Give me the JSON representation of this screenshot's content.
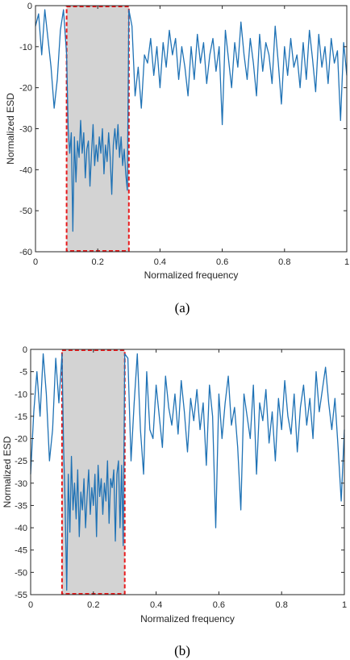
{
  "chart_data": [
    {
      "type": "line",
      "caption": "(a)",
      "xlabel": "Normalized frequency",
      "ylabel": "Normalized ESD",
      "xlim": [
        0,
        1
      ],
      "ylim": [
        -60,
        0
      ],
      "xticks": [
        0,
        0.2,
        0.4,
        0.6,
        0.8,
        1
      ],
      "xtick_labels": [
        "0",
        "0.2",
        "0.4",
        "0.6",
        "0.8",
        "1"
      ],
      "yticks": [
        0,
        -10,
        -20,
        -30,
        -40,
        -50,
        -60
      ],
      "ytick_labels": [
        "0",
        "-10",
        "-20",
        "-30",
        "-40",
        "-50",
        "-60"
      ],
      "grid": false,
      "band": {
        "x0": 0.1,
        "x1": 0.3,
        "fill": "#d3d3d3",
        "border": "#e8191b"
      },
      "line_color": "#1f72b5",
      "x": [
        0,
        0.01,
        0.02,
        0.03,
        0.04,
        0.05,
        0.06,
        0.07,
        0.08,
        0.09,
        0.1,
        0.105,
        0.11,
        0.115,
        0.12,
        0.125,
        0.13,
        0.135,
        0.14,
        0.145,
        0.15,
        0.155,
        0.16,
        0.165,
        0.17,
        0.175,
        0.18,
        0.185,
        0.19,
        0.195,
        0.2,
        0.205,
        0.21,
        0.215,
        0.22,
        0.225,
        0.23,
        0.235,
        0.24,
        0.245,
        0.25,
        0.255,
        0.26,
        0.265,
        0.27,
        0.275,
        0.28,
        0.285,
        0.29,
        0.295,
        0.3,
        0.31,
        0.32,
        0.33,
        0.34,
        0.35,
        0.36,
        0.37,
        0.38,
        0.39,
        0.4,
        0.41,
        0.42,
        0.43,
        0.44,
        0.45,
        0.46,
        0.47,
        0.48,
        0.49,
        0.5,
        0.51,
        0.52,
        0.53,
        0.54,
        0.55,
        0.56,
        0.57,
        0.58,
        0.59,
        0.6,
        0.61,
        0.62,
        0.63,
        0.64,
        0.65,
        0.66,
        0.67,
        0.68,
        0.69,
        0.7,
        0.71,
        0.72,
        0.73,
        0.74,
        0.75,
        0.76,
        0.77,
        0.78,
        0.79,
        0.8,
        0.81,
        0.82,
        0.83,
        0.84,
        0.85,
        0.86,
        0.87,
        0.88,
        0.89,
        0.9,
        0.91,
        0.92,
        0.93,
        0.94,
        0.95,
        0.96,
        0.97,
        0.98,
        0.99,
        1
      ],
      "y": [
        -5,
        -2,
        -12,
        -1,
        -8,
        -15,
        -25,
        -18,
        -6,
        -1,
        -12,
        -30,
        -36,
        -31,
        -55,
        -32,
        -43,
        -33,
        -37,
        -28,
        -36,
        -31,
        -42,
        -35,
        -33,
        -44,
        -36,
        -29,
        -39,
        -34,
        -38,
        -32,
        -36,
        -30,
        -41,
        -34,
        -38,
        -31,
        -37,
        -46,
        -34,
        -30,
        -35,
        -29,
        -37,
        -32,
        -39,
        -35,
        -41,
        -45,
        -1,
        -5,
        -22,
        -15,
        -25,
        -12,
        -14,
        -8,
        -17,
        -10,
        -20,
        -9,
        -15,
        -6,
        -12,
        -8,
        -18,
        -10,
        -15,
        -22,
        -10,
        -18,
        -7,
        -14,
        -9,
        -19,
        -12,
        -8,
        -16,
        -10,
        -29,
        -6,
        -13,
        -20,
        -9,
        -15,
        -4,
        -12,
        -18,
        -8,
        -14,
        -22,
        -7,
        -16,
        -9,
        -12,
        -19,
        -5,
        -14,
        -24,
        -10,
        -17,
        -8,
        -15,
        -12,
        -20,
        -9,
        -18,
        -6,
        -13,
        -21,
        -7,
        -15,
        -10,
        -19,
        -8,
        -14,
        -11,
        -28,
        -9,
        -17
      ]
    },
    {
      "type": "line",
      "caption": "(b)",
      "xlabel": "Normalized frequency",
      "ylabel": "Normalized ESD",
      "xlim": [
        0,
        1
      ],
      "ylim": [
        -55,
        0
      ],
      "xticks": [
        0,
        0.2,
        0.4,
        0.6,
        0.8,
        1
      ],
      "xtick_labels": [
        "0",
        "0.2",
        "0.4",
        "0.6",
        "0.8",
        "1"
      ],
      "yticks": [
        0,
        -5,
        -10,
        -15,
        -20,
        -25,
        -30,
        -35,
        -40,
        -45,
        -50,
        -55
      ],
      "ytick_labels": [
        "0",
        "-5",
        "-10",
        "-15",
        "-20",
        "-25",
        "-30",
        "-35",
        "-40",
        "-45",
        "-50",
        "-55"
      ],
      "grid": false,
      "band": {
        "x0": 0.1,
        "x1": 0.3,
        "fill": "#d3d3d3",
        "border": "#e8191b"
      },
      "line_color": "#1f72b5",
      "x": [
        0,
        0.01,
        0.02,
        0.03,
        0.04,
        0.05,
        0.06,
        0.07,
        0.08,
        0.09,
        0.1,
        0.105,
        0.11,
        0.115,
        0.12,
        0.125,
        0.13,
        0.135,
        0.14,
        0.145,
        0.15,
        0.155,
        0.16,
        0.165,
        0.17,
        0.175,
        0.18,
        0.185,
        0.19,
        0.195,
        0.2,
        0.205,
        0.21,
        0.215,
        0.22,
        0.225,
        0.23,
        0.235,
        0.24,
        0.245,
        0.25,
        0.255,
        0.26,
        0.265,
        0.27,
        0.275,
        0.28,
        0.285,
        0.29,
        0.295,
        0.3,
        0.31,
        0.32,
        0.33,
        0.34,
        0.35,
        0.36,
        0.37,
        0.38,
        0.39,
        0.4,
        0.41,
        0.42,
        0.43,
        0.44,
        0.45,
        0.46,
        0.47,
        0.48,
        0.49,
        0.5,
        0.51,
        0.52,
        0.53,
        0.54,
        0.55,
        0.56,
        0.57,
        0.58,
        0.59,
        0.6,
        0.61,
        0.62,
        0.63,
        0.64,
        0.65,
        0.66,
        0.67,
        0.68,
        0.69,
        0.7,
        0.71,
        0.72,
        0.73,
        0.74,
        0.75,
        0.76,
        0.77,
        0.78,
        0.79,
        0.8,
        0.81,
        0.82,
        0.83,
        0.84,
        0.85,
        0.86,
        0.87,
        0.88,
        0.89,
        0.9,
        0.91,
        0.92,
        0.93,
        0.94,
        0.95,
        0.96,
        0.97,
        0.98,
        0.99,
        1
      ],
      "y": [
        -28,
        -14,
        -5,
        -15,
        -1,
        -10,
        -25,
        -18,
        -2,
        -12,
        -1,
        -22,
        -35,
        -54,
        -28,
        -41,
        -24,
        -36,
        -30,
        -38,
        -27,
        -42,
        -32,
        -36,
        -29,
        -40,
        -33,
        -27,
        -37,
        -31,
        -35,
        -28,
        -42,
        -26,
        -33,
        -29,
        -37,
        -30,
        -34,
        -25,
        -39,
        -29,
        -31,
        -27,
        -43,
        -28,
        -25,
        -40,
        -26,
        -44,
        -1,
        -2,
        -25,
        -12,
        -1,
        -18,
        -28,
        -5,
        -18,
        -20,
        -8,
        -15,
        -22,
        -6,
        -13,
        -17,
        -10,
        -19,
        -7,
        -14,
        -23,
        -11,
        -16,
        -9,
        -18,
        -12,
        -26,
        -8,
        -15,
        -40,
        -10,
        -20,
        -12,
        -6,
        -17,
        -13,
        -22,
        -36,
        -10,
        -15,
        -20,
        -8,
        -28,
        -12,
        -16,
        -9,
        -21,
        -14,
        -25,
        -11,
        -18,
        -7,
        -15,
        -19,
        -10,
        -23,
        -13,
        -8,
        -17,
        -11,
        -20,
        -5,
        -14,
        -9,
        -4,
        -12,
        -18,
        -11,
        -22,
        -34,
        -18
      ]
    }
  ]
}
